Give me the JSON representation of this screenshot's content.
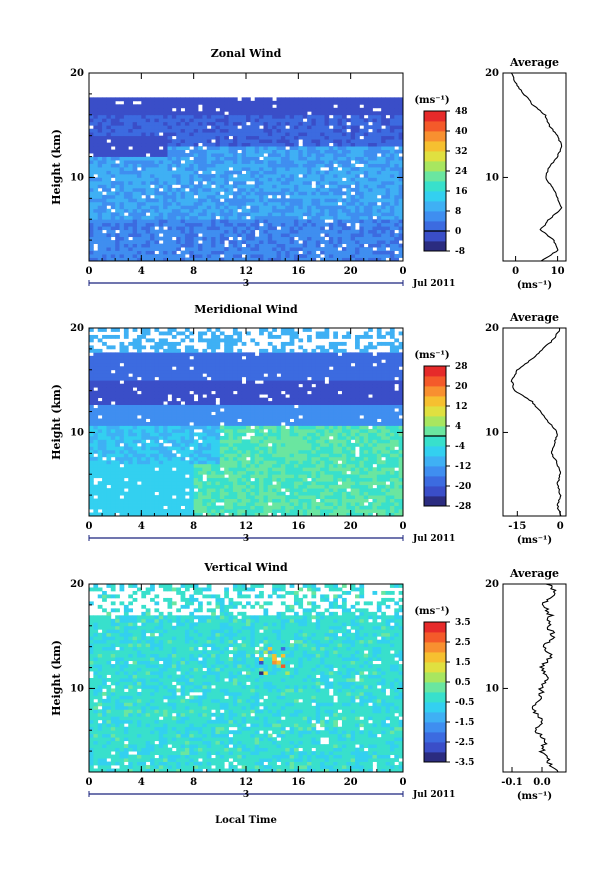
{
  "colors": {
    "scale": [
      "#2b2c80",
      "#3a4ec8",
      "#3c6be0",
      "#3f8ef0",
      "#3fb0f4",
      "#33d0f0",
      "#38e0cc",
      "#6ae6a0",
      "#a8e660",
      "#e0e040",
      "#f6c030",
      "#f89030",
      "#f45a2a",
      "#e62a2a"
    ],
    "missing": "#ffffff",
    "line": "#000000",
    "axis": "#1a237e"
  },
  "date_label": "Jul 2011",
  "time_xlabel": "Local Time",
  "chart_data": [
    {
      "type": "heatmap",
      "title": "Zonal Wind",
      "xlabel": "",
      "ylabel": "Height (km)",
      "x_ticks": [
        "0",
        "4",
        "8",
        "12",
        "16",
        "20",
        "0"
      ],
      "y_ticks": [
        "10",
        "20"
      ],
      "xlim": [
        0,
        24
      ],
      "ylim": [
        2,
        20
      ],
      "colorbar": {
        "unit": "(ms⁻¹)",
        "ticks": [
          "48",
          "40",
          "32",
          "24",
          "16",
          "8",
          "0",
          "-8"
        ],
        "range": [
          -8,
          48
        ],
        "zero_line": 0
      },
      "day_marker": "3",
      "profile": {
        "title": "Average",
        "xlabel": "(ms⁻¹)",
        "x_ticks": [
          "0",
          "10"
        ],
        "xlim": [
          -3,
          12
        ],
        "y_ticks": [
          "10",
          "20"
        ],
        "height": [
          2,
          3,
          4,
          5,
          6,
          7,
          8,
          9,
          10,
          11,
          12,
          13,
          14,
          15,
          16,
          17,
          18,
          19,
          20
        ],
        "value": [
          6,
          10,
          9,
          6,
          8,
          11,
          10,
          9,
          7,
          8,
          10,
          11,
          10,
          8,
          7,
          4,
          2,
          0,
          -1
        ]
      }
    },
    {
      "type": "heatmap",
      "title": "Meridional Wind",
      "xlabel": "",
      "ylabel": "Height (km)",
      "x_ticks": [
        "0",
        "4",
        "8",
        "12",
        "16",
        "20",
        "0"
      ],
      "y_ticks": [
        "10",
        "20"
      ],
      "xlim": [
        0,
        24
      ],
      "ylim": [
        2,
        20
      ],
      "colorbar": {
        "unit": "(ms⁻¹)",
        "ticks": [
          "28",
          "20",
          "12",
          "4",
          "-4",
          "-12",
          "-20",
          "-28"
        ],
        "range": [
          -28,
          28
        ],
        "zero_line": 0
      },
      "day_marker": "3",
      "profile": {
        "title": "Average",
        "xlabel": "(ms⁻¹)",
        "x_ticks": [
          "-15",
          "0"
        ],
        "xlim": [
          -20,
          2
        ],
        "y_ticks": [
          "10",
          "20"
        ],
        "height": [
          2,
          3,
          4,
          5,
          6,
          7,
          8,
          9,
          10,
          11,
          12,
          13,
          14,
          15,
          16,
          17,
          18,
          19,
          20
        ],
        "value": [
          0,
          -1,
          0,
          -1,
          0,
          -1,
          -3,
          -2,
          -1,
          -4,
          -7,
          -10,
          -16,
          -17,
          -15,
          -10,
          -6,
          -2,
          0
        ]
      }
    },
    {
      "type": "heatmap",
      "title": "Vertical Wind",
      "xlabel": "Local Time",
      "ylabel": "Height (km)",
      "x_ticks": [
        "0",
        "4",
        "8",
        "12",
        "16",
        "20",
        "0"
      ],
      "y_ticks": [
        "10",
        "20"
      ],
      "xlim": [
        0,
        24
      ],
      "ylim": [
        2,
        20
      ],
      "colorbar": {
        "unit": "(ms⁻¹)",
        "ticks": [
          "3.5",
          "2.5",
          "1.5",
          "0.5",
          "-0.5",
          "-1.5",
          "-2.5",
          "-3.5"
        ],
        "range": [
          -3.5,
          3.5
        ]
      },
      "day_marker": "3",
      "profile": {
        "title": "Average",
        "xlabel": "(ms⁻¹)",
        "x_ticks": [
          "-0.1",
          "0.0"
        ],
        "xlim": [
          -0.13,
          0.08
        ],
        "y_ticks": [
          "10",
          "20"
        ],
        "height": [
          2,
          3,
          4,
          5,
          6,
          7,
          8,
          9,
          10,
          11,
          12,
          13,
          14,
          15,
          16,
          17,
          18,
          19,
          20
        ],
        "value": [
          0.05,
          0.02,
          0.0,
          0.01,
          -0.02,
          0.0,
          -0.03,
          -0.01,
          0.0,
          0.02,
          0.0,
          0.03,
          0.01,
          0.04,
          0.02,
          0.03,
          0.0,
          0.05,
          0.02
        ]
      }
    }
  ]
}
